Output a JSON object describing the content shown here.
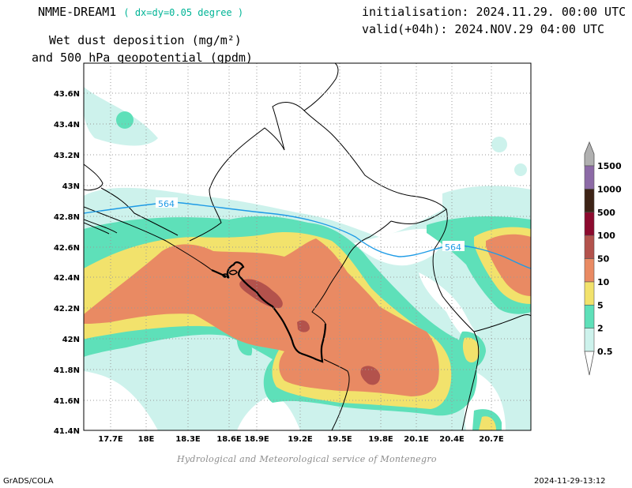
{
  "header": {
    "model_name": "NMME-DREAM1",
    "resolution": "( dx=dy=0.05 degree )",
    "initialisation": "initialisation: 2024.11.29. 00:00 UTC",
    "valid": "valid(+04h): 2024.NOV.29 04:00 UTC",
    "title_line1": "Wet dust deposition (mg/m²)",
    "title_line2": "and 500 hPa geopotential (gpdm)"
  },
  "map": {
    "lat_labels": [
      "43.6N",
      "43.4N",
      "43.2N",
      "43N",
      "42.8N",
      "42.6N",
      "42.4N",
      "42.2N",
      "42N",
      "41.8N",
      "41.6N",
      "41.4N"
    ],
    "lon_labels": [
      "17.7E",
      "18E",
      "18.3E",
      "18.6E",
      "18.9E",
      "19.2E",
      "19.5E",
      "19.8E",
      "20.1E",
      "20.4E",
      "20.7E"
    ],
    "contour_label": "564",
    "contour_color": "#1e9be6",
    "colors": {
      "class_0_5": "#cdf2ec",
      "class_2": "#5ee0b9",
      "class_5": "#f2e26c",
      "class_10": "#e98a63",
      "class_50": "#b3524c"
    }
  },
  "colorbar": {
    "labels": [
      "0.5",
      "2",
      "5",
      "10",
      "50",
      "100",
      "500",
      "1000",
      "1500"
    ],
    "colors": [
      "#cdf2ec",
      "#5ee0b9",
      "#f2e26c",
      "#e98a63",
      "#b3524c",
      "#8c0a2e",
      "#3d2316",
      "#8c6aa6"
    ]
  },
  "footer": {
    "credit": "Hydrological and Meteorological service of Montenegro",
    "software": "GrADS/COLA",
    "timestamp": "2024-11-29-13:12"
  }
}
